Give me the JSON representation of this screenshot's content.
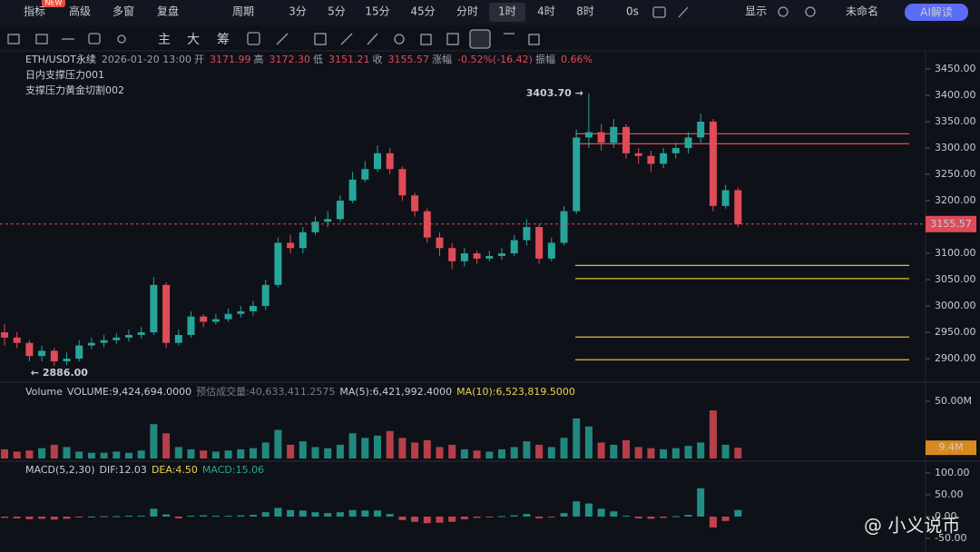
{
  "toolbar": {
    "badge": "NEW",
    "items": [
      "指标",
      "高级",
      "多窗",
      "复盘",
      "周期"
    ],
    "periods": [
      "3分",
      "5分",
      "15分",
      "45分",
      "分时",
      "1时",
      "4时",
      "8时",
      "0s"
    ],
    "active_period": 5,
    "right": [
      "显示",
      "未命名"
    ],
    "ai": "AI解读",
    "tools": [
      "主",
      "大",
      "筹"
    ]
  },
  "info": {
    "symbol": "ETH/USDT永续",
    "time": "2026-01-20 13:00",
    "fields": [
      [
        "开",
        "3171.99"
      ],
      [
        "高",
        "3172.30"
      ],
      [
        "低",
        "3151.21"
      ],
      [
        "收",
        "3155.57"
      ],
      [
        "涨幅",
        "-0.52%(-16.42)"
      ],
      [
        "振幅",
        "0.66%"
      ]
    ],
    "indicators": [
      "日内支撑压力001",
      "支撑压力黄金切割002"
    ]
  },
  "volume_header": [
    "Volume",
    "VOLUME:9,424,694.0000",
    "预估成交量:40,633,411.2575",
    "MA(5):6,421,992.4000",
    "MA(10):6,523,819.5000"
  ],
  "macd_header": [
    "MACD(5,2,30)",
    "DIF:12.03",
    "DEA:4.50",
    "MACD:15.06"
  ],
  "watermark": "@ 小义说币",
  "chart_data": [
    {
      "type": "candlestick",
      "up_color": "#26a69a",
      "down_color": "#e04b58",
      "open": [
        2950,
        2940,
        2930,
        2905,
        2915,
        2895,
        2900,
        2925,
        2930,
        2935,
        2940,
        2945,
        2950,
        3040,
        2930,
        2945,
        2980,
        2970,
        2975,
        2985,
        2990,
        3000,
        3040,
        3120,
        3110,
        3140,
        3160,
        3165,
        3200,
        3240,
        3260,
        3290,
        3260,
        3210,
        3180,
        3130,
        3110,
        3085,
        3100,
        3090,
        3095,
        3100,
        3125,
        3150,
        3090,
        3120,
        3180,
        3320,
        3330,
        3310,
        3340,
        3290,
        3285,
        3270,
        3290,
        3300,
        3320,
        3350,
        3190,
        3220
      ],
      "high": [
        2965,
        2950,
        2935,
        2925,
        2920,
        2912,
        2935,
        2940,
        2945,
        2948,
        2955,
        2960,
        3055,
        3045,
        2955,
        2990,
        2985,
        2985,
        2995,
        3000,
        3010,
        3050,
        3130,
        3135,
        3150,
        3170,
        3180,
        3210,
        3255,
        3275,
        3305,
        3300,
        3265,
        3215,
        3185,
        3140,
        3120,
        3110,
        3105,
        3105,
        3110,
        3135,
        3165,
        3155,
        3130,
        3190,
        3335,
        3403.7,
        3345,
        3355,
        3345,
        3300,
        3295,
        3300,
        3310,
        3330,
        3365,
        3355,
        3230,
        3225
      ],
      "low": [
        2925,
        2920,
        2895,
        2895,
        2886,
        2888,
        2895,
        2918,
        2922,
        2928,
        2932,
        2938,
        2945,
        2920,
        2925,
        2940,
        2960,
        2965,
        2970,
        2978,
        2982,
        2992,
        3035,
        3100,
        3100,
        3135,
        3150,
        3160,
        3195,
        3235,
        3255,
        3250,
        3200,
        3170,
        3120,
        3095,
        3070,
        3075,
        3080,
        3085,
        3088,
        3095,
        3115,
        3080,
        3085,
        3115,
        3175,
        3300,
        3295,
        3300,
        3280,
        3270,
        3255,
        3262,
        3280,
        3290,
        3310,
        3180,
        3185,
        3150
      ],
      "close": [
        2940,
        2930,
        2905,
        2915,
        2895,
        2900,
        2925,
        2930,
        2935,
        2940,
        2945,
        2950,
        3040,
        2930,
        2945,
        2980,
        2970,
        2975,
        2985,
        2990,
        3000,
        3040,
        3120,
        3110,
        3140,
        3160,
        3165,
        3200,
        3240,
        3260,
        3290,
        3260,
        3210,
        3180,
        3130,
        3110,
        3085,
        3100,
        3090,
        3095,
        3100,
        3125,
        3150,
        3090,
        3120,
        3180,
        3320,
        3330,
        3310,
        3340,
        3290,
        3285,
        3270,
        3290,
        3300,
        3320,
        3350,
        3190,
        3220,
        3155.57
      ],
      "ylim": [
        2857,
        3484.5
      ],
      "yticks": [
        {
          "value": 3450,
          "label": "3450.00"
        },
        {
          "value": 3400,
          "label": "3400.00"
        },
        {
          "value": 3350,
          "label": "3350.00"
        },
        {
          "value": 3300,
          "label": "3300.00"
        },
        {
          "value": 3250,
          "label": "3250.00"
        },
        {
          "value": 3200,
          "label": "3200.00"
        },
        {
          "value": 3150,
          "label": "3150.00"
        },
        {
          "value": 3100,
          "label": "3100.00"
        },
        {
          "value": 3050,
          "label": "3050.00"
        },
        {
          "value": 3000,
          "label": "3000.00"
        },
        {
          "value": 2950,
          "label": "2950.00"
        },
        {
          "value": 2900,
          "label": "2900.00"
        }
      ],
      "last_price": 3155.57,
      "levels": [
        {
          "value": 3327,
          "color": "#e04b58"
        },
        {
          "value": 3308,
          "color": "#e04b58"
        },
        {
          "value": 3077,
          "color": "#d9c23a"
        },
        {
          "value": 3052,
          "color": "#d9c23a"
        },
        {
          "value": 2941,
          "color": "#d9c23a"
        },
        {
          "value": 2898,
          "color": "#d9c23a"
        }
      ],
      "annotations": [
        {
          "text": "3403.70 →",
          "value": 3403.7
        },
        {
          "text": "← 2886.00",
          "value": 2886
        }
      ]
    },
    {
      "type": "volume",
      "values": [
        8,
        6,
        7,
        9,
        12,
        10,
        6,
        5,
        5,
        6,
        5,
        7,
        30,
        22,
        10,
        8,
        7,
        6,
        7,
        8,
        9,
        14,
        25,
        12,
        15,
        10,
        9,
        12,
        22,
        18,
        20,
        24,
        18,
        14,
        16,
        10,
        12,
        8,
        7,
        6,
        8,
        10,
        15,
        12,
        10,
        18,
        35,
        28,
        14,
        12,
        16,
        10,
        9,
        8,
        9,
        11,
        14,
        42,
        12,
        9.4
      ],
      "ylim": [
        0,
        64.3
      ],
      "yticks": [
        {
          "value": 50,
          "label": "50.00M"
        }
      ],
      "current": 9.4,
      "current_label": "9.4M",
      "current_color": "#d98a1f"
    },
    {
      "type": "macd",
      "values": [
        -3,
        -4,
        -6,
        -5,
        -7,
        -5,
        -2,
        0,
        1,
        1,
        2,
        2,
        18,
        5,
        -4,
        2,
        3,
        2,
        2,
        3,
        4,
        10,
        20,
        15,
        14,
        10,
        8,
        10,
        15,
        14,
        14,
        6,
        -8,
        -12,
        -15,
        -14,
        -12,
        -6,
        -3,
        -1,
        1,
        3,
        6,
        -4,
        -2,
        8,
        35,
        30,
        18,
        12,
        2,
        -4,
        -5,
        -3,
        1,
        4,
        65,
        -25,
        -10,
        15.06
      ],
      "ylim": [
        -81.25,
        122.9
      ],
      "yticks": [
        {
          "value": 100,
          "label": "100.00"
        },
        {
          "value": 50,
          "label": "50.00"
        },
        {
          "value": 0,
          "label": "0.00"
        },
        {
          "value": -50,
          "label": "-50.00"
        }
      ]
    }
  ]
}
